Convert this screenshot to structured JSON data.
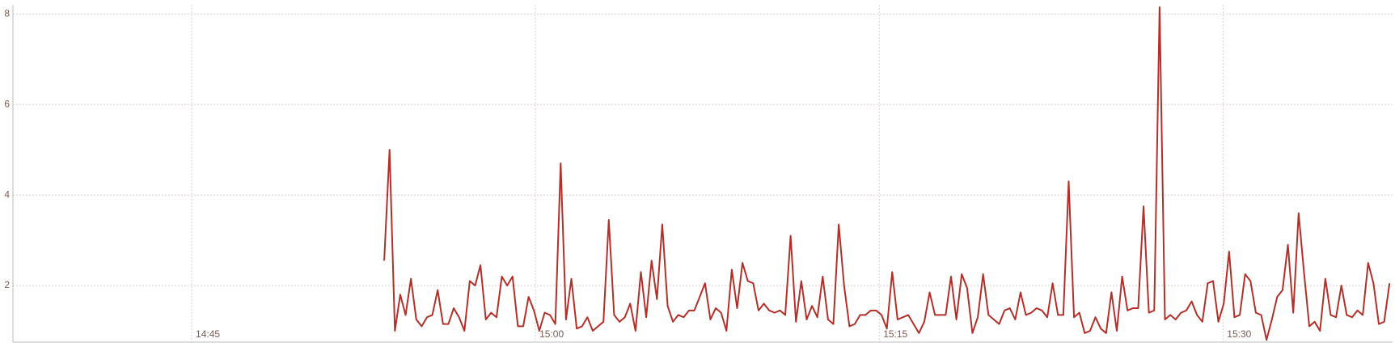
{
  "chart_data": {
    "type": "line",
    "color": "#b3302a",
    "grid": true,
    "xlim": [
      -468,
      3144
    ],
    "xticks": [
      {
        "value": 0,
        "label": "14:45"
      },
      {
        "value": 900,
        "label": "15:00"
      },
      {
        "value": 1800,
        "label": "15:15"
      },
      {
        "value": 2700,
        "label": "15:30"
      }
    ],
    "ylim": [
      0.75,
      8.2
    ],
    "yticks": [
      2,
      4,
      6,
      8
    ],
    "x": [
      504,
      518,
      532,
      546,
      560,
      574,
      588,
      602,
      616,
      630,
      644,
      658,
      672,
      686,
      700,
      714,
      728,
      742,
      756,
      770,
      784,
      798,
      812,
      826,
      840,
      854,
      868,
      882,
      896,
      910,
      924,
      938,
      952,
      966,
      980,
      994,
      1008,
      1022,
      1036,
      1050,
      1064,
      1078,
      1092,
      1106,
      1120,
      1134,
      1148,
      1162,
      1176,
      1190,
      1204,
      1218,
      1232,
      1246,
      1260,
      1274,
      1288,
      1302,
      1316,
      1330,
      1344,
      1358,
      1372,
      1386,
      1400,
      1414,
      1428,
      1442,
      1456,
      1470,
      1484,
      1498,
      1512,
      1526,
      1540,
      1554,
      1568,
      1582,
      1596,
      1610,
      1624,
      1638,
      1652,
      1666,
      1680,
      1694,
      1708,
      1722,
      1736,
      1750,
      1764,
      1778,
      1792,
      1806,
      1820,
      1834,
      1848,
      1862,
      1876,
      1890,
      1904,
      1918,
      1932,
      1946,
      1960,
      1974,
      1988,
      2002,
      2016,
      2030,
      2044,
      2058,
      2072,
      2086,
      2100,
      2114,
      2128,
      2142,
      2156,
      2170,
      2184,
      2198,
      2212,
      2226,
      2240,
      2254,
      2268,
      2282,
      2296,
      2310,
      2324,
      2338,
      2352,
      2366,
      2380,
      2394,
      2408,
      2422,
      2436,
      2450,
      2464,
      2478,
      2492,
      2506,
      2520,
      2534,
      2548,
      2562,
      2576,
      2590,
      2604,
      2618,
      2632,
      2646,
      2660,
      2674,
      2688,
      2702,
      2716,
      2730,
      2744,
      2758,
      2772,
      2786,
      2800,
      2814,
      2828,
      2842,
      2856,
      2870,
      2884,
      2898,
      2912,
      2926,
      2940,
      2954,
      2968,
      2982,
      2996,
      3010,
      3024,
      3038,
      3052,
      3066,
      3080,
      3094,
      3108,
      3122,
      3136
    ],
    "values": [
      2.55,
      5.0,
      1.0,
      1.8,
      1.35,
      2.15,
      1.25,
      1.1,
      1.3,
      1.35,
      1.9,
      1.15,
      1.15,
      1.5,
      1.3,
      1.0,
      2.1,
      2.0,
      2.45,
      1.25,
      1.4,
      1.3,
      2.2,
      2.0,
      2.2,
      1.1,
      1.1,
      1.75,
      1.45,
      1.0,
      1.4,
      1.35,
      1.15,
      4.7,
      1.25,
      2.15,
      1.05,
      1.1,
      1.3,
      1.0,
      1.1,
      1.2,
      3.45,
      1.35,
      1.2,
      1.3,
      1.6,
      1.0,
      2.3,
      1.3,
      2.55,
      1.7,
      3.35,
      1.55,
      1.2,
      1.35,
      1.3,
      1.45,
      1.45,
      1.75,
      2.05,
      1.25,
      1.5,
      1.4,
      1.0,
      2.35,
      1.5,
      2.5,
      2.1,
      2.05,
      1.45,
      1.6,
      1.45,
      1.4,
      1.45,
      1.35,
      3.1,
      1.2,
      2.1,
      1.25,
      1.55,
      1.3,
      2.2,
      1.25,
      1.15,
      3.35,
      2.0,
      1.1,
      1.15,
      1.35,
      1.35,
      1.45,
      1.45,
      1.35,
      1.05,
      2.3,
      1.25,
      1.3,
      1.35,
      1.15,
      0.95,
      1.2,
      1.85,
      1.35,
      1.35,
      1.35,
      2.2,
      1.25,
      2.25,
      1.95,
      0.95,
      1.3,
      2.25,
      1.35,
      1.25,
      1.15,
      1.45,
      1.5,
      1.25,
      1.85,
      1.35,
      1.4,
      1.5,
      1.45,
      1.3,
      2.05,
      1.35,
      1.35,
      4.3,
      1.3,
      1.4,
      0.95,
      1.0,
      1.3,
      1.05,
      0.95,
      1.85,
      1.0,
      2.2,
      1.45,
      1.5,
      1.5,
      3.75,
      1.4,
      1.45,
      8.15,
      1.25,
      1.35,
      1.25,
      1.4,
      1.45,
      1.65,
      1.35,
      1.2,
      2.05,
      2.1,
      1.2,
      1.6,
      2.75,
      1.3,
      1.35,
      2.25,
      2.1,
      1.4,
      1.35,
      0.8,
      1.25,
      1.75,
      1.9,
      2.9,
      1.4,
      3.6,
      2.3,
      1.1,
      1.2,
      1.0,
      2.15,
      1.35,
      1.3,
      2.0,
      1.35,
      1.3,
      1.45,
      1.35,
      2.5,
      2.05,
      1.15,
      1.2,
      2.05
    ]
  }
}
